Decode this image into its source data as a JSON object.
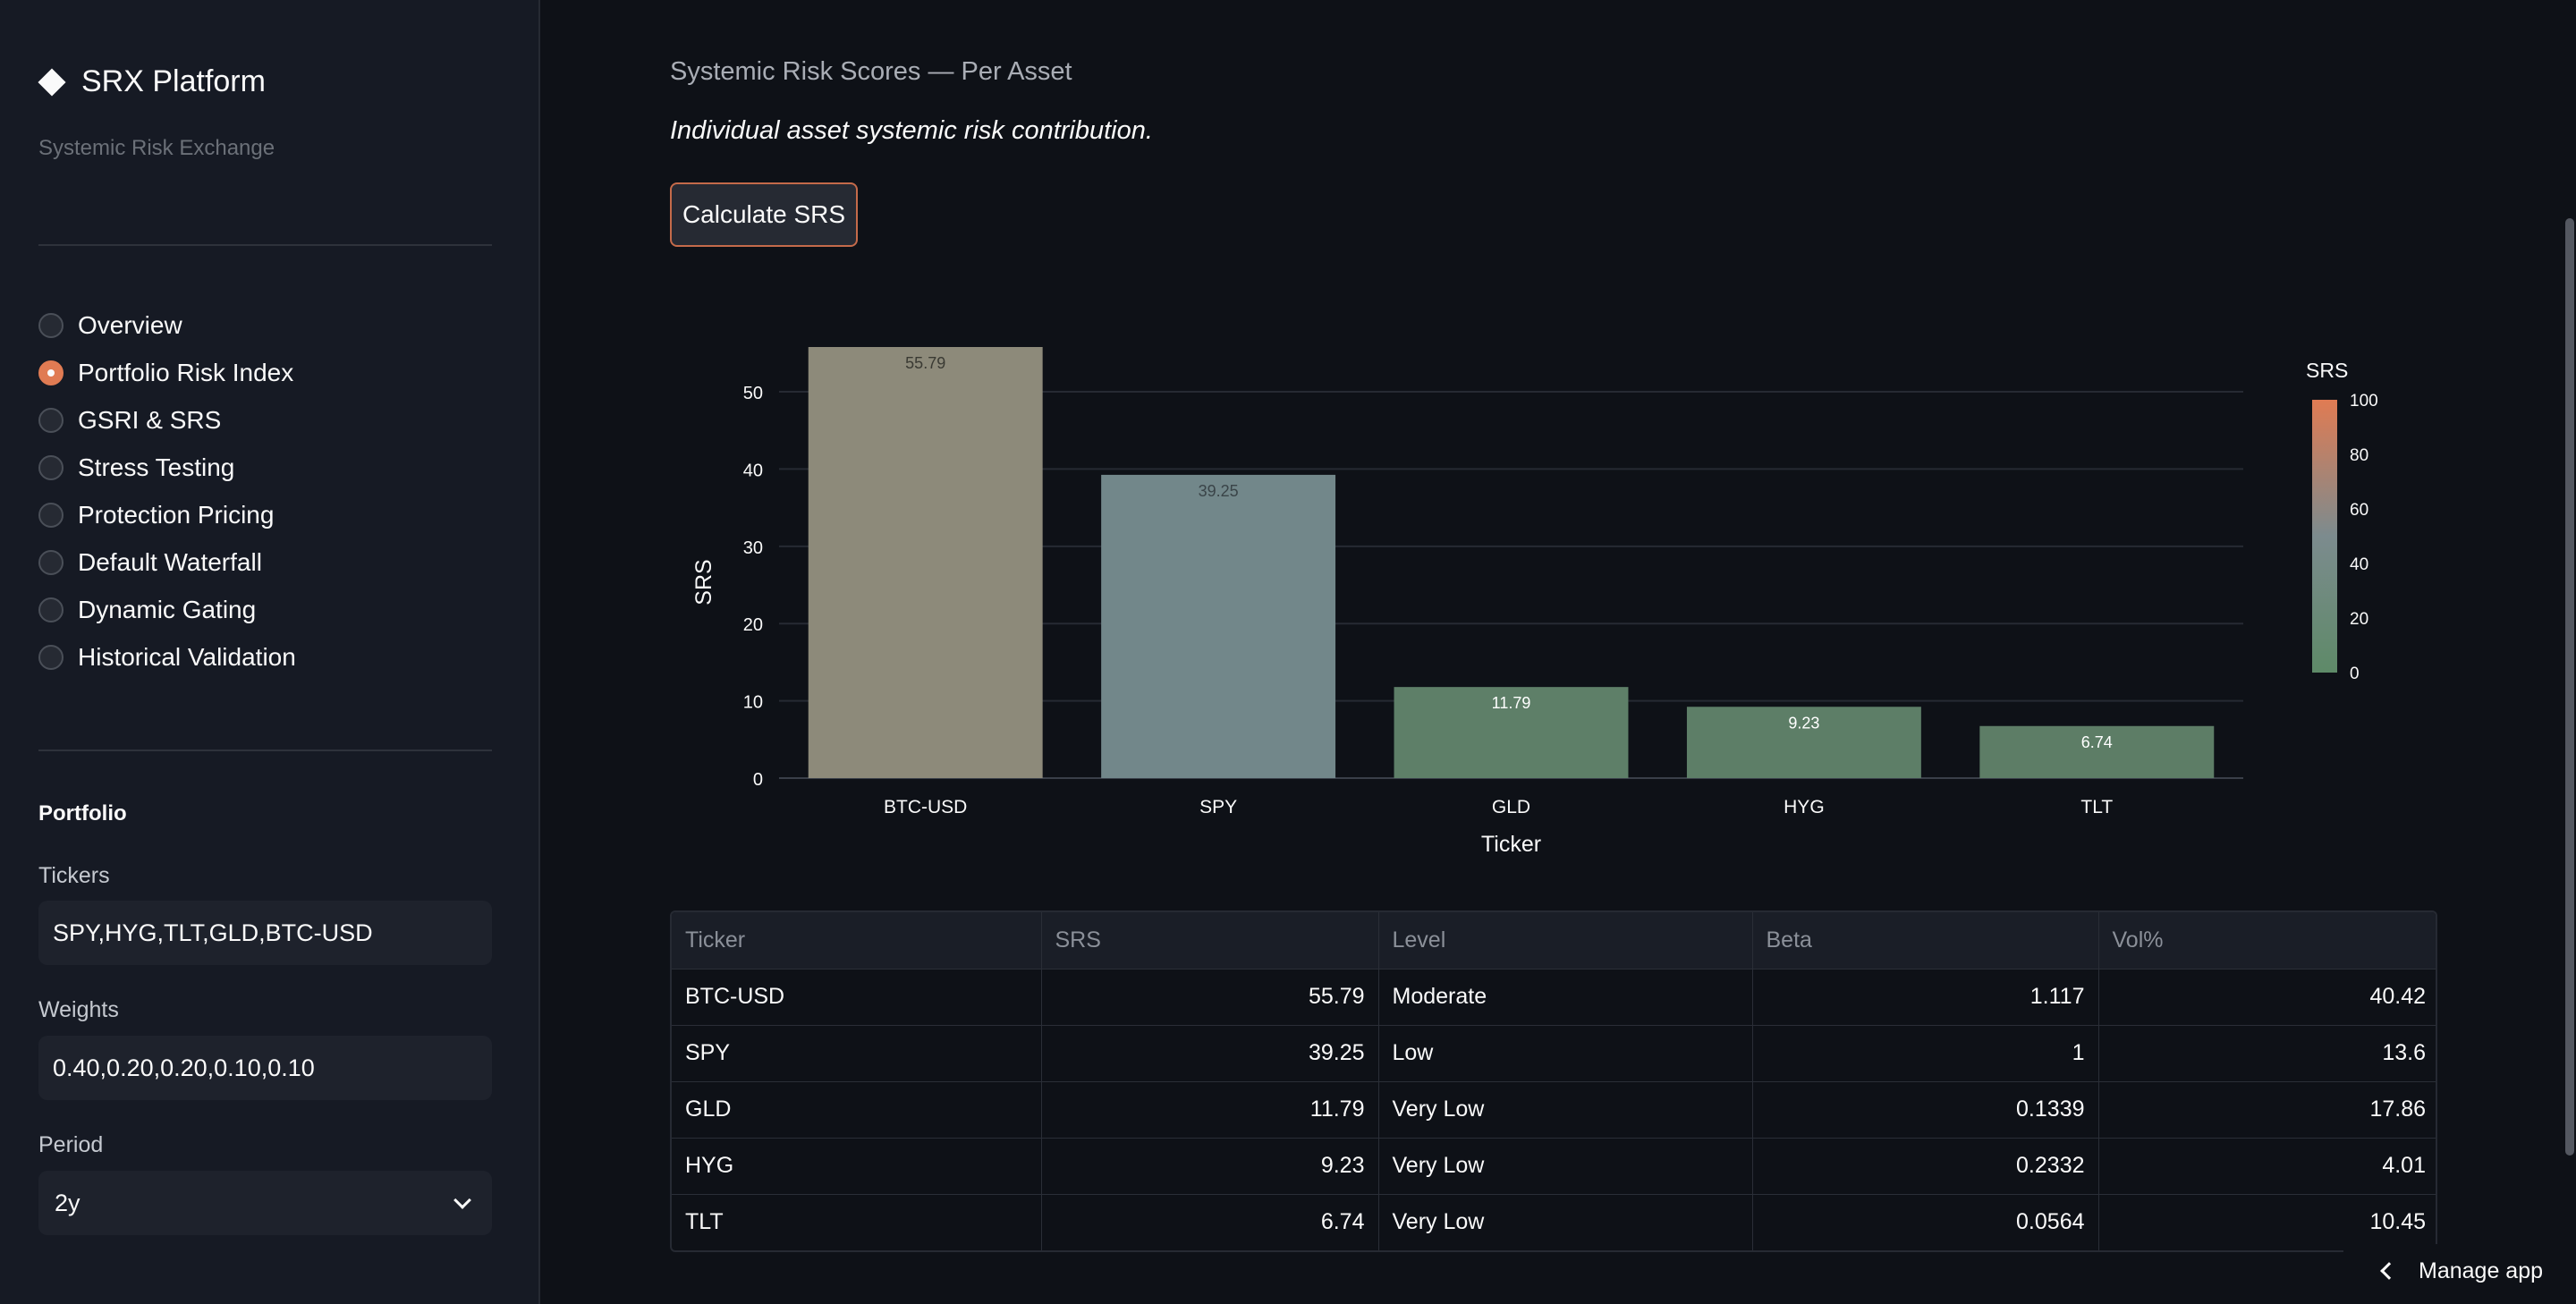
{
  "app": {
    "brand": "SRX Platform",
    "subtitle": "Systemic Risk Exchange"
  },
  "sidebar": {
    "nav": [
      {
        "label": "Overview",
        "selected": false
      },
      {
        "label": "Portfolio Risk Index",
        "selected": true
      },
      {
        "label": "GSRI & SRS",
        "selected": false
      },
      {
        "label": "Stress Testing",
        "selected": false
      },
      {
        "label": "Protection Pricing",
        "selected": false
      },
      {
        "label": "Default Waterfall",
        "selected": false
      },
      {
        "label": "Dynamic Gating",
        "selected": false
      },
      {
        "label": "Historical Validation",
        "selected": false
      }
    ],
    "portfolio": {
      "title": "Portfolio",
      "tickers_label": "Tickers",
      "tickers_value": "SPY,HYG,TLT,GLD,BTC-USD",
      "weights_label": "Weights",
      "weights_value": "0.40,0.20,0.20,0.10,0.10",
      "period_label": "Period",
      "period_value": "2y"
    }
  },
  "main": {
    "title": "Systemic Risk Scores — Per Asset",
    "caption": "Individual asset systemic risk contribution.",
    "button": "Calculate SRS"
  },
  "chart_data": {
    "type": "bar",
    "categories": [
      "BTC-USD",
      "SPY",
      "GLD",
      "HYG",
      "TLT"
    ],
    "values": [
      55.79,
      39.25,
      11.79,
      9.23,
      6.74
    ],
    "data_labels": [
      "55.79",
      "39.25",
      "11.79",
      "9.23",
      "6.74"
    ],
    "xlabel": "Ticker",
    "ylabel": "SRS",
    "ylim": [
      0,
      55.79
    ],
    "yticks": [
      0,
      10,
      20,
      30,
      40,
      50
    ],
    "grid": true,
    "colorscale": {
      "title": "SRS",
      "range": [
        0,
        100
      ],
      "ticks": [
        0,
        20,
        40,
        60,
        80,
        100
      ],
      "colors": [
        "#5e8a68",
        "#7c8b8e",
        "#e07b53"
      ]
    },
    "bar_colors": [
      "#8d8a7a",
      "#72878a",
      "#5e7f68",
      "#5d7e67",
      "#5d7d66"
    ],
    "label_colors": [
      "#3a3a33",
      "#3a4448",
      "#ffffff",
      "#ffffff",
      "#ffffff"
    ]
  },
  "table": {
    "columns": [
      "Ticker",
      "SRS",
      "Level",
      "Beta",
      "Vol%"
    ],
    "rows": [
      [
        "BTC-USD",
        "55.79",
        "Moderate",
        "1.117",
        "40.42"
      ],
      [
        "SPY",
        "39.25",
        "Low",
        "1",
        "13.6"
      ],
      [
        "GLD",
        "11.79",
        "Very Low",
        "0.1339",
        "17.86"
      ],
      [
        "HYG",
        "9.23",
        "Very Low",
        "0.2332",
        "4.01"
      ],
      [
        "TLT",
        "6.74",
        "Very Low",
        "0.0564",
        "10.45"
      ]
    ]
  },
  "footer": {
    "manage_app": "Manage app"
  }
}
